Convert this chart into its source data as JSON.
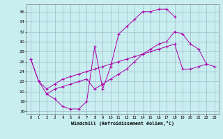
{
  "xlabel": "Windchill (Refroidissement éolien,°C)",
  "xlim": [
    -0.5,
    23.5
  ],
  "ylim": [
    15.5,
    37.5
  ],
  "xticks": [
    0,
    1,
    2,
    3,
    4,
    5,
    6,
    7,
    8,
    9,
    10,
    11,
    12,
    13,
    14,
    15,
    16,
    17,
    18,
    19,
    20,
    21,
    22,
    23
  ],
  "yticks": [
    16,
    18,
    20,
    22,
    24,
    26,
    28,
    30,
    32,
    34,
    36
  ],
  "bg_color": "#c8eef0",
  "grid_color": "#a0b8cc",
  "line_color": "#aa00aa",
  "curve1_x": [
    0,
    1,
    2,
    3,
    4,
    5,
    6,
    7,
    8,
    9,
    10,
    11,
    12,
    13,
    14,
    15,
    16,
    17,
    18
  ],
  "curve1_y": [
    26.5,
    22.0,
    19.5,
    18.5,
    17.0,
    16.5,
    16.5,
    18.0,
    29.0,
    20.5,
    25.0,
    31.5,
    33.0,
    34.5,
    36.0,
    36.0,
    36.5,
    36.5,
    35.0
  ],
  "curve2_x": [
    0,
    1,
    2,
    3,
    4,
    5,
    6,
    7,
    8,
    9,
    10,
    11,
    12,
    13,
    14,
    15,
    16,
    17,
    18,
    19,
    20,
    21,
    22
  ],
  "curve2_y": [
    26.5,
    22.0,
    20.5,
    21.5,
    22.5,
    23.0,
    23.5,
    24.0,
    24.5,
    25.0,
    25.5,
    26.0,
    26.5,
    27.0,
    27.5,
    28.0,
    28.5,
    29.0,
    29.5,
    24.5,
    24.5,
    25.0,
    25.5
  ],
  "curve3_x": [
    2,
    3,
    4,
    5,
    6,
    7,
    8,
    9,
    10,
    11,
    12,
    13,
    14,
    15,
    16,
    17,
    18,
    19,
    20,
    21,
    22,
    23
  ],
  "curve3_y": [
    19.5,
    20.5,
    21.0,
    21.5,
    22.0,
    22.5,
    20.5,
    21.5,
    22.5,
    23.5,
    24.5,
    26.0,
    27.5,
    28.5,
    29.5,
    30.0,
    32.0,
    31.5,
    29.5,
    28.5,
    25.5,
    25.0
  ]
}
